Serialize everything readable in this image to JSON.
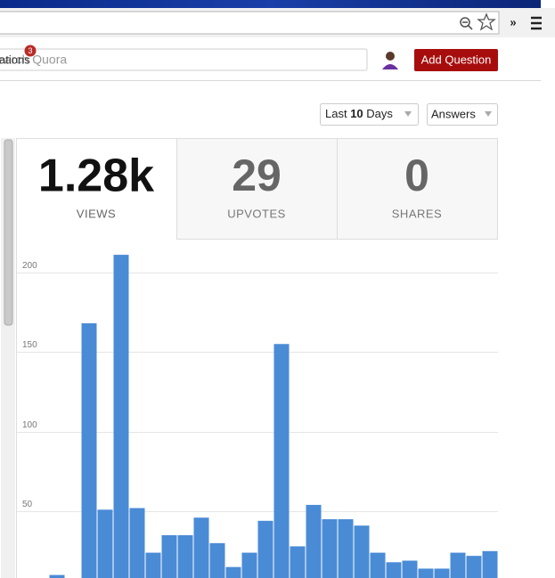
{
  "browser": {
    "more": "»"
  },
  "header": {
    "notifications_label": "ations",
    "notifications_count": "3",
    "search_placeholder": "Search Quora",
    "add_question": "Add Question"
  },
  "filters": {
    "period_prefix": "Last",
    "period_number": "10",
    "period_unit": "Days",
    "content": "Answers"
  },
  "stats": [
    {
      "value": "1.28k",
      "label": "VIEWS"
    },
    {
      "value": "29",
      "label": "UPVOTES"
    },
    {
      "value": "0",
      "label": "SHARES"
    }
  ],
  "chart_data": {
    "type": "bar",
    "color": "#4a8bd6",
    "values": [
      0,
      0,
      10,
      0,
      168,
      51,
      211,
      52,
      24,
      35,
      35,
      46,
      30,
      15,
      24,
      44,
      155,
      28,
      54,
      45,
      45,
      41,
      24,
      18,
      19,
      14,
      14,
      24,
      22,
      25
    ],
    "ylim": [
      0,
      220
    ],
    "yticks": [
      50,
      100,
      150,
      200
    ],
    "grid": true
  }
}
